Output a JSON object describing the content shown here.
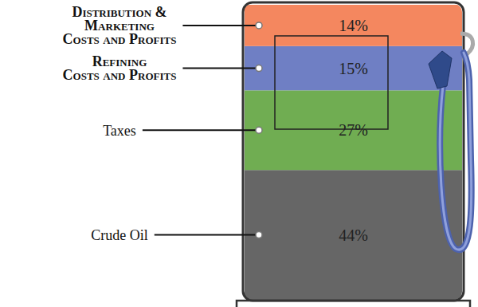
{
  "chart_data": {
    "type": "bar",
    "stacked": true,
    "data_labels": true,
    "tick_labels": false,
    "categories": [
      null
    ],
    "series": [
      {
        "name": "Crude Oil",
        "color": "#666666",
        "values": [
          44
        ],
        "value_labels": [
          "44%"
        ]
      },
      {
        "name": "Taxes",
        "color": "#70ad52",
        "values": [
          27
        ],
        "value_labels": [
          "27%"
        ]
      },
      {
        "name": "Refining Costs and Profits",
        "color": "#6f7fc4",
        "values": [
          15
        ],
        "value_labels": [
          "15%"
        ]
      },
      {
        "name": "Distribution & Marketing Costs and Profits",
        "color": "#f4875f",
        "values": [
          14
        ],
        "value_labels": [
          "14%"
        ]
      }
    ]
  }
}
